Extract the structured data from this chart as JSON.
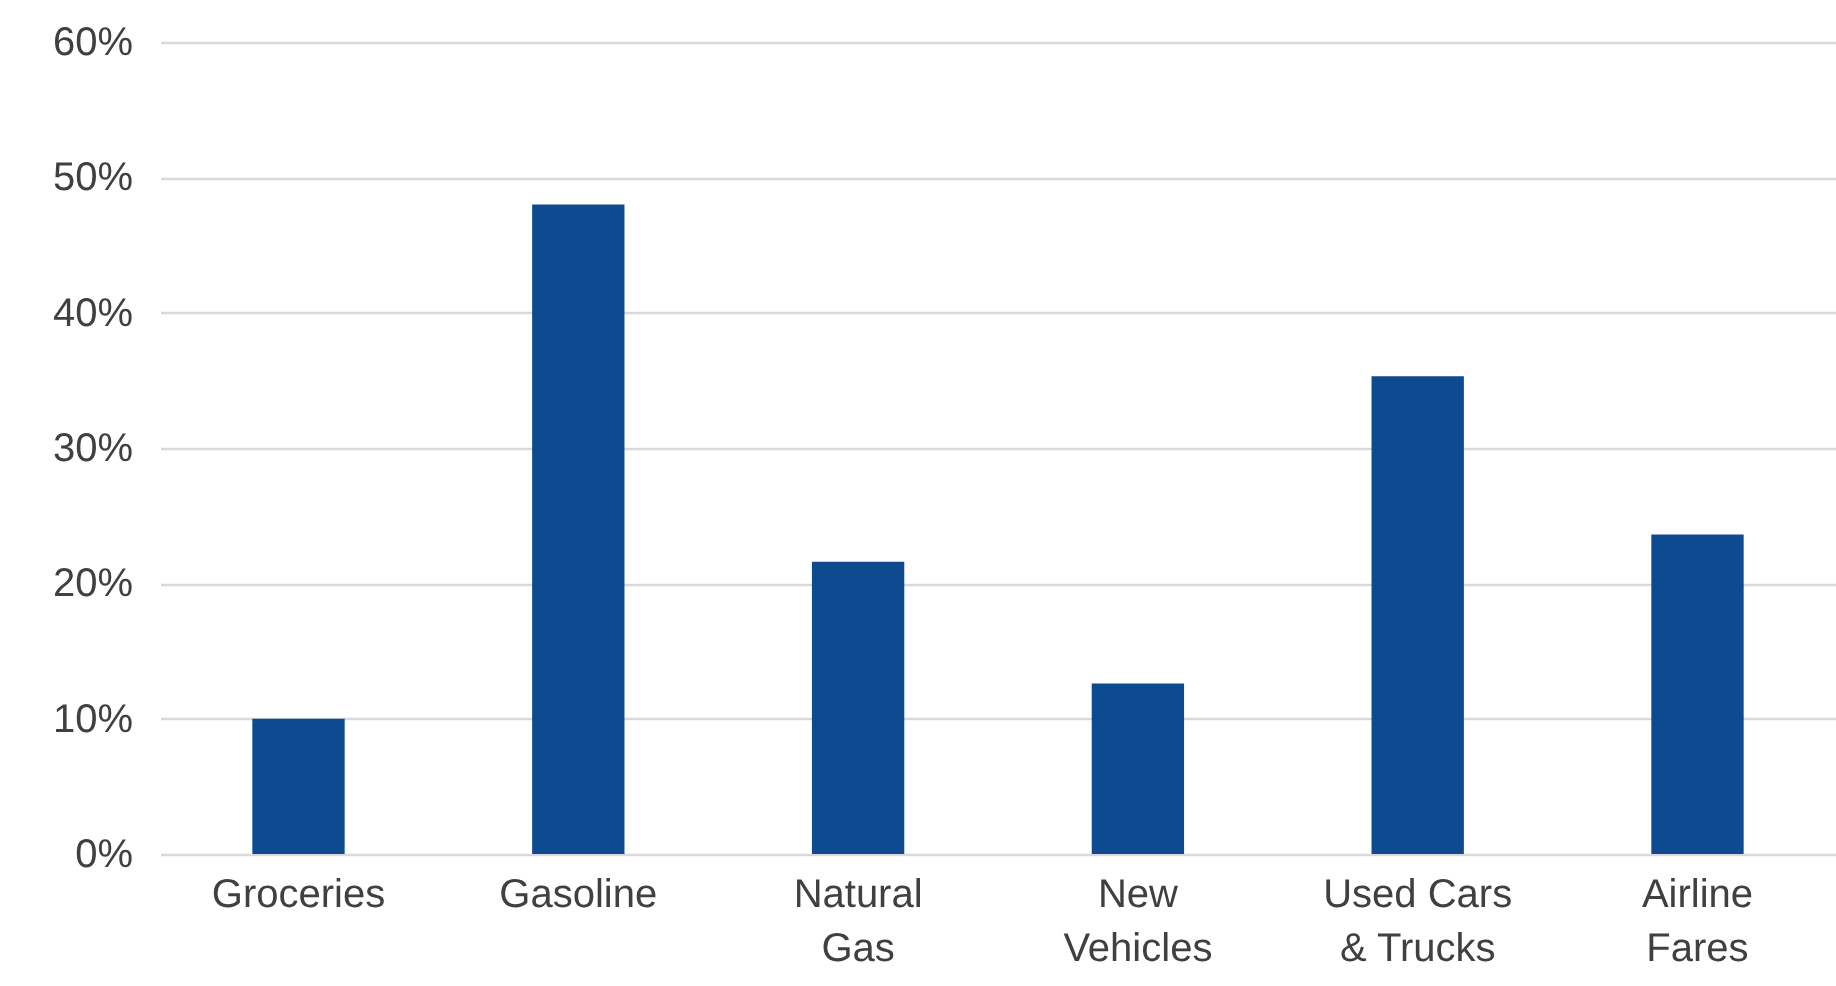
{
  "chart_data": {
    "type": "bar",
    "categories": [
      "Groceries",
      "Gasoline",
      "Natural\nGas",
      "New\nVehicles",
      "Used Cars\n& Trucks",
      "Airline\nFares"
    ],
    "values": [
      10.0,
      48.0,
      21.6,
      12.6,
      35.3,
      23.6
    ],
    "color": "#0d4a8f",
    "ylim": [
      0,
      60
    ],
    "yticks": [
      {
        "value": 0,
        "label": "0%"
      },
      {
        "value": 10,
        "label": "10%"
      },
      {
        "value": 20,
        "label": "20%"
      },
      {
        "value": 30,
        "label": "30%"
      },
      {
        "value": 40,
        "label": "40%"
      },
      {
        "value": 50,
        "label": "50%"
      },
      {
        "value": 60,
        "label": "60%"
      }
    ],
    "grid": "y"
  }
}
